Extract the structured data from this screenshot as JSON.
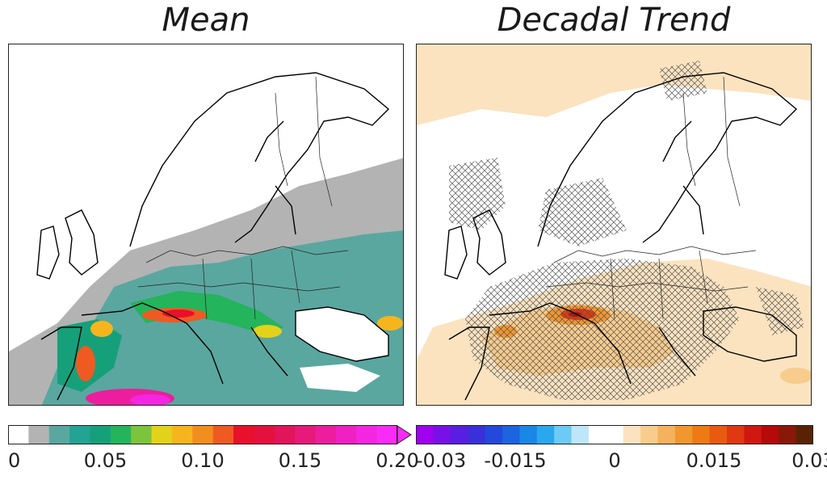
{
  "panels": {
    "left": {
      "title": "Mean"
    },
    "right": {
      "title": "Decadal Trend"
    }
  },
  "colorbars": {
    "left": {
      "ticks": [
        "0",
        "0.05",
        "0.10",
        "0.15",
        "0.20"
      ],
      "tick_values": [
        0,
        0.05,
        0.1,
        0.15,
        0.2
      ],
      "range": [
        0,
        0.2
      ],
      "extend": "max",
      "colors": [
        "#ffffff",
        "#b3b3b3",
        "#5aa7a0",
        "#22a394",
        "#16a07a",
        "#24b45c",
        "#7cc43c",
        "#e3d21a",
        "#f6b51c",
        "#f28e1e",
        "#ef5a22",
        "#e8102a",
        "#e4103e",
        "#e2145a",
        "#e61a7a",
        "#ec1e9e",
        "#f020c2",
        "#f426e2",
        "#f82cf6"
      ]
    },
    "right": {
      "ticks": [
        "-0.03",
        "-0.015",
        "0",
        "0.015",
        "0.03"
      ],
      "tick_values": [
        -0.03,
        -0.015,
        0,
        0.015,
        0.03
      ],
      "range": [
        -0.03,
        0.03
      ],
      "colors": [
        "#a000f0",
        "#7a10e8",
        "#5a1ee0",
        "#3a30da",
        "#2448dc",
        "#1c64e0",
        "#1a86e6",
        "#2aa8ee",
        "#6ccaf4",
        "#bde6f8",
        "#ffffff",
        "#ffffff",
        "#fbe3c0",
        "#f8cc8c",
        "#f4b25c",
        "#f2962e",
        "#ee7a14",
        "#e85a10",
        "#e03810",
        "#d01810",
        "#b40a0a",
        "#8a1808",
        "#5a2204"
      ]
    }
  },
  "colors": {
    "hatch": "#555555",
    "coast": "#000000"
  }
}
